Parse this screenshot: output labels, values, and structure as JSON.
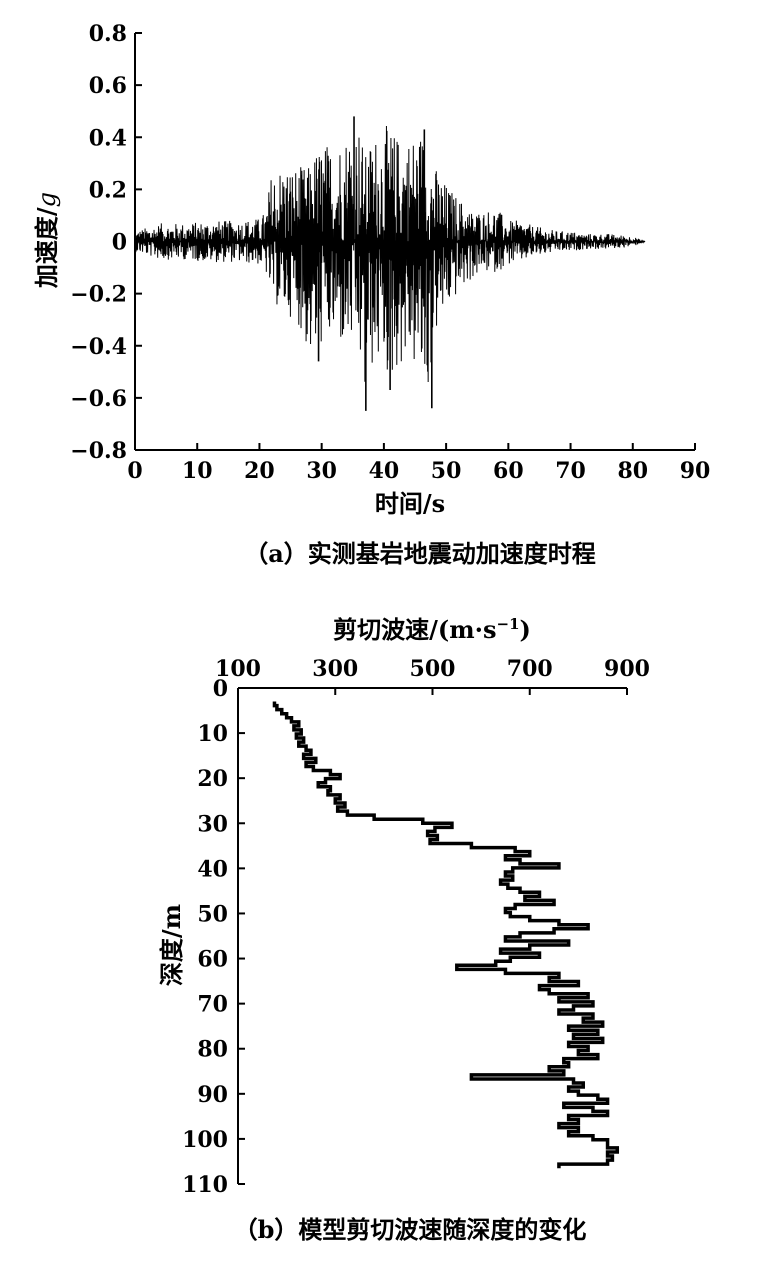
{
  "chart_data": [
    {
      "type": "line",
      "caption": "（a）实测基岩地震动加速度时程",
      "xlabel": "时间/s",
      "ylabel_main": "加速度/",
      "ylabel_unit": "g",
      "xlim": [
        0,
        90
      ],
      "ylim": [
        -0.8,
        0.8
      ],
      "xticks": [
        "0",
        "10",
        "20",
        "30",
        "40",
        "50",
        "60",
        "70",
        "80",
        "90"
      ],
      "yticks": [
        "0.8",
        "0.6",
        "0.4",
        "0.2",
        "0",
        "−0.2",
        "−0.4",
        "−0.6",
        "−0.8"
      ],
      "series": [
        {
          "envelope": {
            "t": [
              0,
              4,
              8,
              12,
              16,
              20,
              21,
              22,
              24,
              26,
              28,
              29,
              30,
              32,
              34,
              35,
              36,
              37,
              38,
              40,
              41,
              42,
              44,
              46,
              47,
              48,
              50,
              52,
              54,
              56,
              58,
              60,
              62,
              64,
              66,
              68,
              70,
              72,
              74,
              76,
              78,
              80,
              82
            ],
            "upper": [
              0.04,
              0.07,
              0.07,
              0.08,
              0.08,
              0.09,
              0.12,
              0.28,
              0.3,
              0.29,
              0.29,
              0.35,
              0.38,
              0.38,
              0.43,
              0.48,
              0.46,
              0.33,
              0.4,
              0.45,
              0.44,
              0.41,
              0.41,
              0.43,
              0.38,
              0.3,
              0.22,
              0.17,
              0.12,
              0.12,
              0.13,
              0.08,
              0.08,
              0.06,
              0.05,
              0.04,
              0.04,
              0.03,
              0.03,
              0.03,
              0.025,
              0.02,
              0.0
            ],
            "lower": [
              -0.04,
              -0.07,
              -0.07,
              -0.08,
              -0.08,
              -0.09,
              -0.12,
              -0.23,
              -0.28,
              -0.3,
              -0.45,
              -0.46,
              -0.4,
              -0.39,
              -0.42,
              -0.41,
              -0.45,
              -0.65,
              -0.5,
              -0.47,
              -0.57,
              -0.5,
              -0.45,
              -0.55,
              -0.64,
              -0.38,
              -0.27,
              -0.2,
              -0.15,
              -0.12,
              -0.12,
              -0.09,
              -0.08,
              -0.06,
              -0.05,
              -0.04,
              -0.04,
              -0.03,
              -0.03,
              -0.03,
              -0.025,
              -0.02,
              0.0
            ]
          },
          "peaks": [
            {
              "t": 35.2,
              "a": 0.48
            },
            {
              "t": 37.1,
              "a": -0.65
            },
            {
              "t": 41.0,
              "a": -0.57
            },
            {
              "t": 47.7,
              "a": -0.64
            },
            {
              "t": 29.5,
              "a": -0.46
            },
            {
              "t": 46.5,
              "a": 0.43
            }
          ]
        }
      ]
    },
    {
      "type": "line",
      "caption": "（b）模型剪切波速随深度的变化",
      "xlabel_main": "剪切波速/(m·s",
      "xlabel_sup": "−1",
      "xlabel_end": ")",
      "ylabel": "深度/m",
      "xlim": [
        100,
        900
      ],
      "ylim": [
        0,
        110
      ],
      "xticks": [
        "100",
        "300",
        "500",
        "700",
        "900"
      ],
      "yticks": [
        "0",
        "10",
        "20",
        "30",
        "40",
        "50",
        "60",
        "70",
        "80",
        "90",
        "100",
        "110"
      ],
      "series": [
        {
          "velocity": [
            175,
            180,
            190,
            200,
            210,
            225,
            215,
            230,
            220,
            235,
            225,
            240,
            250,
            235,
            260,
            240,
            255,
            290,
            310,
            280,
            265,
            290,
            285,
            310,
            300,
            320,
            305,
            325,
            380,
            480,
            540,
            505,
            490,
            510,
            495,
            580,
            670,
            700,
            650,
            680,
            760,
            665,
            650,
            665,
            640,
            655,
            680,
            720,
            690,
            750,
            670,
            650,
            660,
            700,
            760,
            820,
            750,
            680,
            650,
            780,
            700,
            640,
            720,
            660,
            630,
            550,
            650,
            760,
            740,
            800,
            720,
            740,
            820,
            760,
            830,
            790,
            760,
            830,
            810,
            850,
            780,
            840,
            790,
            850,
            780,
            820,
            800,
            840,
            770,
            780,
            740,
            770,
            580,
            790,
            810,
            780,
            800,
            840,
            860,
            770,
            830,
            860,
            780,
            800,
            760,
            800,
            780,
            830,
            860,
            860,
            880,
            860,
            870,
            860,
            760
          ],
          "depth_step": 0.9,
          "depth_start": 3.0
        }
      ]
    }
  ]
}
